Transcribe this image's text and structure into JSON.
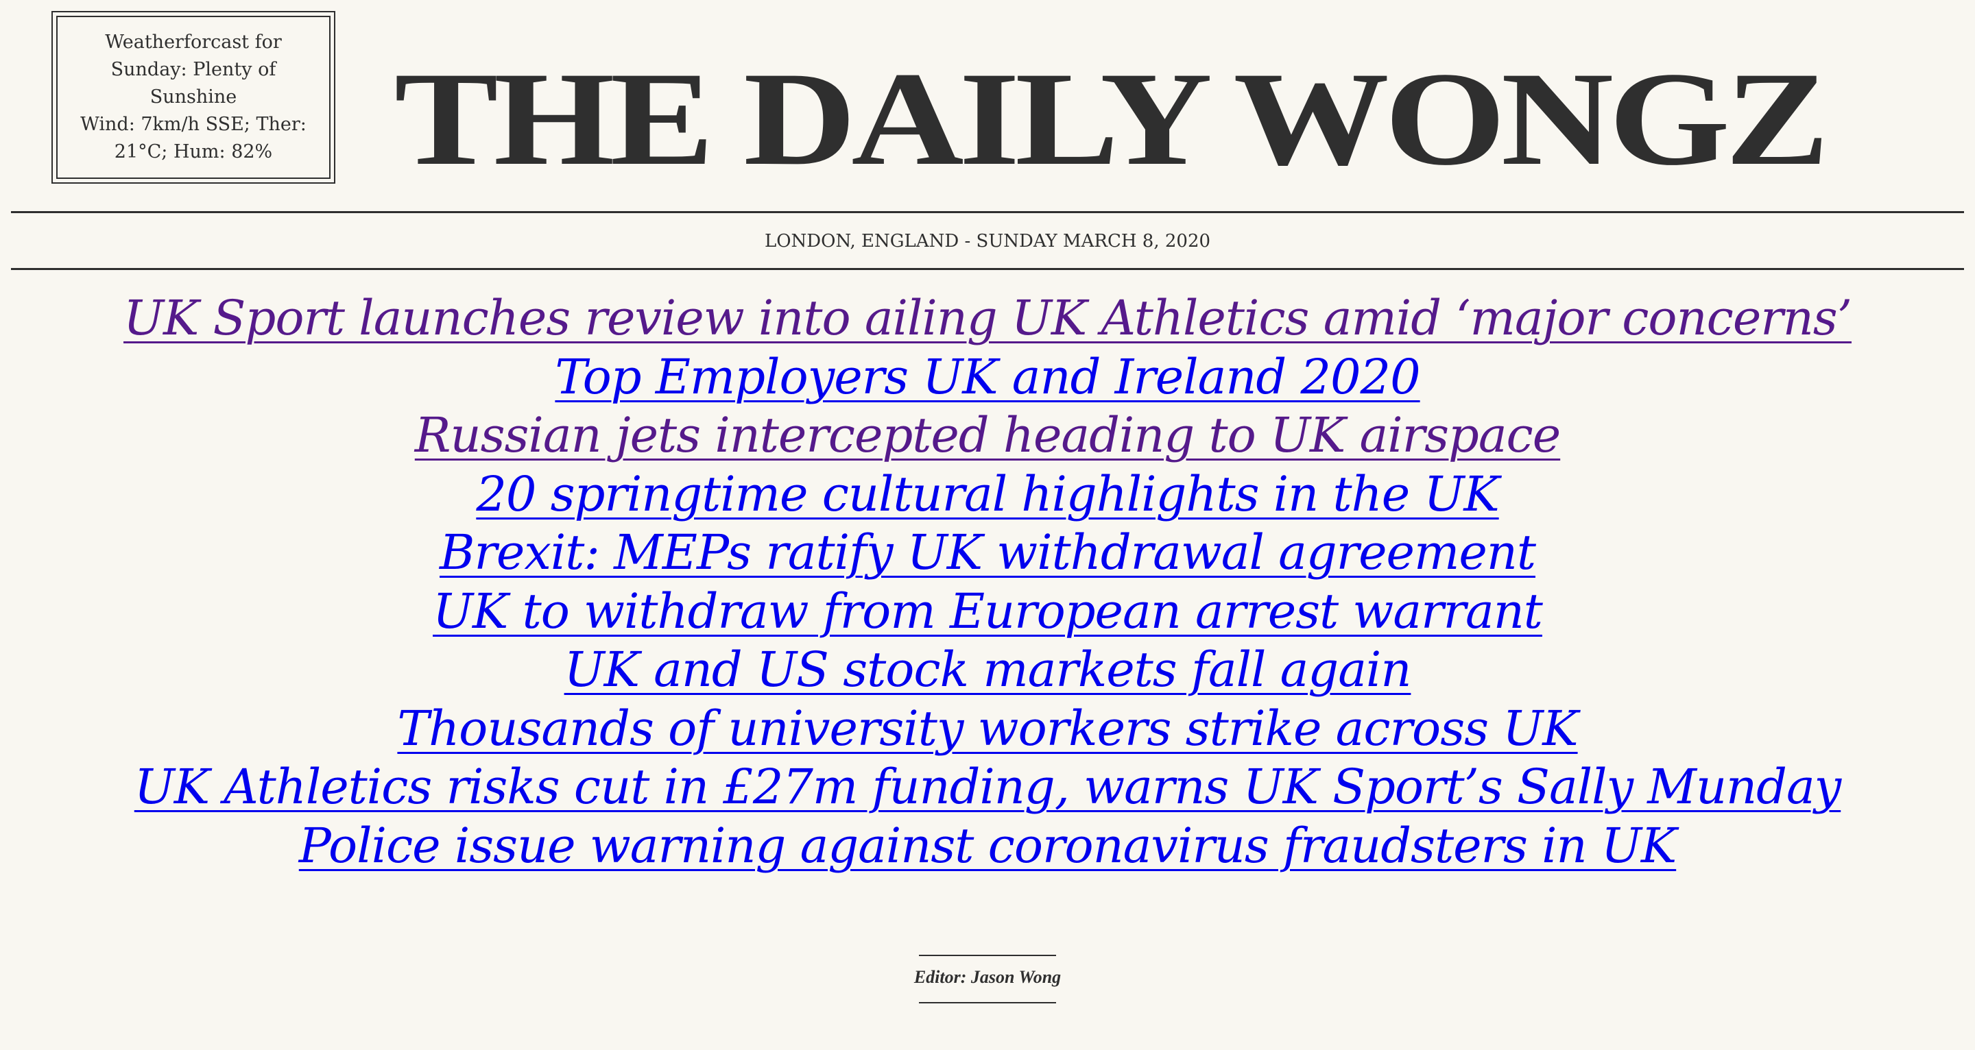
{
  "weather": {
    "line1": "Weatherforcast for Sunday: Plenty of Sunshine",
    "line2": "Wind: 7km/h SSE; Ther: 21°C; Hum: 82%"
  },
  "masthead": {
    "title": "THE DAILY WONGZ"
  },
  "dateline": "LONDON, ENGLAND - SUNDAY MARCH 8, 2020",
  "headlines": [
    {
      "text": "UK Sport launches review into ailing UK Athletics amid ‘major concerns’",
      "visited": true
    },
    {
      "text": "Top Employers UK and Ireland 2020",
      "visited": false
    },
    {
      "text": "Russian jets intercepted heading to UK airspace",
      "visited": true
    },
    {
      "text": "20 springtime cultural highlights in the UK",
      "visited": false
    },
    {
      "text": "Brexit: MEPs ratify UK withdrawal agreement",
      "visited": false
    },
    {
      "text": "UK to withdraw from European arrest warrant",
      "visited": false
    },
    {
      "text": "UK and US stock markets fall again",
      "visited": false
    },
    {
      "text": "Thousands of university workers strike across UK",
      "visited": false
    },
    {
      "text": "UK Athletics risks cut in £27m funding, warns UK Sport’s Sally Munday",
      "visited": false
    },
    {
      "text": "Police issue warning against coronavirus fraudsters in UK",
      "visited": false
    }
  ],
  "colors": {
    "visited_link": "#551a8b",
    "unvisited_link": "#0000ee",
    "ink": "#2f2f2f",
    "paper": "#f9f7f1"
  },
  "footer": {
    "editor": "Editor: Jason Wong"
  }
}
